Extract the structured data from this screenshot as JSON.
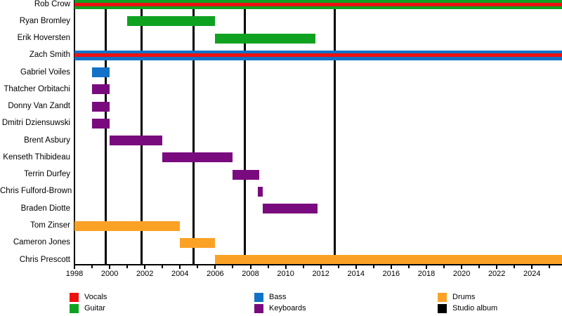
{
  "chart_data": {
    "type": "timeline",
    "description": "Band member timeline gantt chart",
    "x_axis": {
      "min": 1998,
      "max": 2025.7,
      "major_tick_labels": [
        "1998",
        "2000",
        "2002",
        "2004",
        "2006",
        "2008",
        "2010",
        "2012",
        "2014",
        "2016",
        "2018",
        "2020",
        "2022",
        "2024"
      ],
      "major_tick_years": [
        1998,
        2000,
        2002,
        2004,
        2006,
        2008,
        2010,
        2012,
        2014,
        2016,
        2018,
        2020,
        2022,
        2024
      ],
      "minor_tick_years": [
        1999,
        2001,
        2003,
        2005,
        2007,
        2009,
        2011,
        2013,
        2015,
        2017,
        2019,
        2021,
        2023,
        2025
      ],
      "grid": false
    },
    "role_colors": {
      "Vocals": "#ee1111",
      "Guitar": "#0fa221",
      "Bass": "#1172c8",
      "Keyboards": "#7a0b7f",
      "Drums": "#fba226",
      "Studio album": "#000000"
    },
    "members": [
      {
        "name": "Rob Crow",
        "roles": [
          "Guitar",
          "Vocals"
        ],
        "start": 1998,
        "end": 2025.7
      },
      {
        "name": "Ryan Bromley",
        "roles": [
          "Guitar"
        ],
        "start": 2001,
        "end": 2006
      },
      {
        "name": "Erik Hoversten",
        "roles": [
          "Guitar"
        ],
        "start": 2006,
        "end": 2011.7
      },
      {
        "name": "Zach Smith",
        "roles": [
          "Bass",
          "Vocals"
        ],
        "start": 1998,
        "end": 2025.7
      },
      {
        "name": "Gabriel Voiles",
        "roles": [
          "Bass"
        ],
        "start": 1999,
        "end": 2000
      },
      {
        "name": "Thatcher Orbitachi",
        "roles": [
          "Keyboards"
        ],
        "start": 1999,
        "end": 2000
      },
      {
        "name": "Donny Van Zandt",
        "roles": [
          "Keyboards"
        ],
        "start": 1999,
        "end": 2000
      },
      {
        "name": "Dmitri Dziensuwski",
        "roles": [
          "Keyboards"
        ],
        "start": 1999,
        "end": 2000
      },
      {
        "name": "Brent Asbury",
        "roles": [
          "Keyboards"
        ],
        "start": 2000,
        "end": 2003
      },
      {
        "name": "Kenseth Thibideau",
        "roles": [
          "Keyboards"
        ],
        "start": 2003,
        "end": 2007
      },
      {
        "name": "Terrin Durfey",
        "roles": [
          "Keyboards"
        ],
        "start": 2007,
        "end": 2008.5
      },
      {
        "name": "Chris Fulford-Brown",
        "roles": [
          "Keyboards"
        ],
        "start": 2008.4,
        "end": 2008.7
      },
      {
        "name": "Braden Diotte",
        "roles": [
          "Keyboards"
        ],
        "start": 2008.7,
        "end": 2011.8
      },
      {
        "name": "Tom Zinser",
        "roles": [
          "Drums"
        ],
        "start": 1998,
        "end": 2004
      },
      {
        "name": "Cameron Jones",
        "roles": [
          "Drums"
        ],
        "start": 2004,
        "end": 2006
      },
      {
        "name": "Chris Prescott",
        "roles": [
          "Drums"
        ],
        "start": 2006,
        "end": 2025.7
      }
    ],
    "studio_album_years": [
      1999.78,
      2001.8,
      2004.75,
      2007.7,
      2012.8
    ],
    "legend": {
      "position": "bottom",
      "columns": [
        [
          "Vocals",
          "Guitar"
        ],
        [
          "Bass",
          "Keyboards"
        ],
        [
          "Drums",
          "Studio album"
        ]
      ]
    }
  }
}
